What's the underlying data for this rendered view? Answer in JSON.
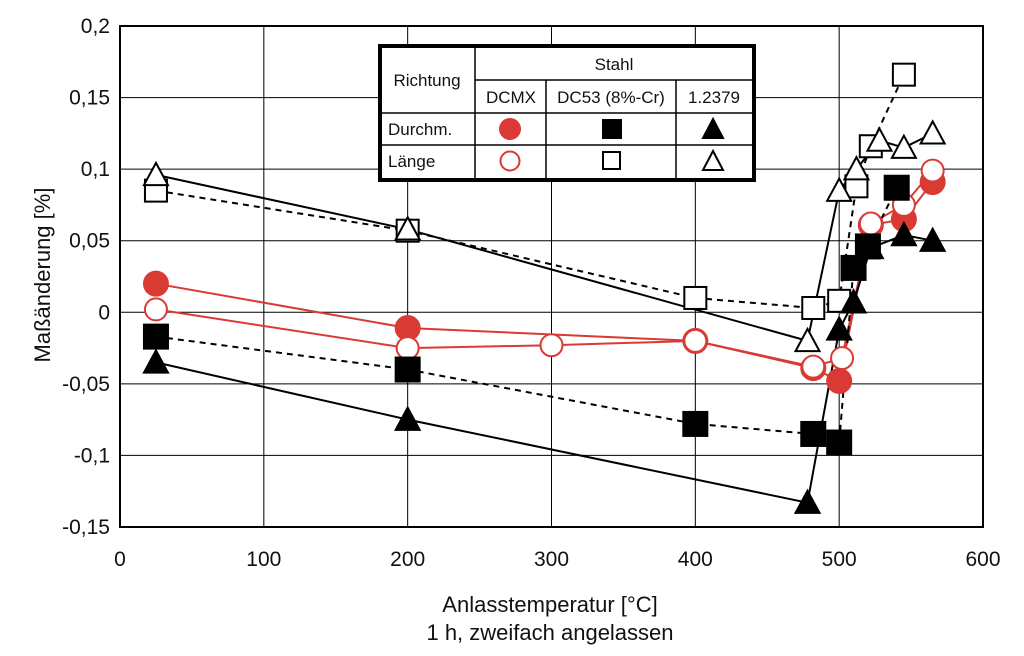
{
  "chart_data": {
    "type": "line",
    "xlabel": "Anlasstemperatur [°C]",
    "xlabel_line2": "1 h, zweifach angelassen",
    "ylabel": "Maßänderung [%]",
    "xlim": [
      0,
      600
    ],
    "ylim": [
      -0.15,
      0.2
    ],
    "x_ticks": [
      0,
      100,
      200,
      300,
      400,
      500,
      600
    ],
    "x_tick_labels": [
      "0",
      "100",
      "200",
      "300",
      "400",
      "500",
      "600"
    ],
    "y_ticks": [
      -0.15,
      -0.1,
      -0.05,
      0,
      0.05,
      0.1,
      0.15,
      0.2
    ],
    "y_tick_labels": [
      "-0,15",
      "-0,1",
      "-0,05",
      "0",
      "0,05",
      "0,1",
      "0,15",
      "0,2"
    ],
    "grid": true,
    "legend": {
      "placement": "top-center",
      "row_header": "Richtung",
      "group_header": "Stahl",
      "columns": [
        "DCMX",
        "DC53 (8%-Cr)",
        "1.2379"
      ],
      "rows": [
        "Durchm.",
        "Länge"
      ]
    },
    "series": [
      {
        "steel": "DCMX",
        "direction": "Durchm.",
        "marker": "circle",
        "filled": true,
        "color": "#d93a34",
        "line": "solid",
        "x": [
          25,
          200,
          400,
          482,
          500,
          522,
          545,
          565
        ],
        "y": [
          0.02,
          -0.011,
          -0.02,
          -0.039,
          -0.048,
          0.061,
          0.065,
          0.091
        ]
      },
      {
        "steel": "DCMX",
        "direction": "Länge",
        "marker": "circle",
        "filled": false,
        "color": "#d93a34",
        "line": "solid",
        "x": [
          25,
          200,
          300,
          400,
          482,
          502,
          522,
          545,
          565
        ],
        "y": [
          0.002,
          -0.025,
          -0.023,
          -0.02,
          -0.038,
          -0.032,
          0.062,
          0.075,
          0.099
        ]
      },
      {
        "steel": "DC53 (8%-Cr)",
        "direction": "Durchm.",
        "marker": "square",
        "filled": true,
        "color": "#000000",
        "line": "dashed",
        "x": [
          25,
          200,
          400,
          482,
          500,
          510,
          520,
          540
        ],
        "y": [
          -0.017,
          -0.04,
          -0.078,
          -0.085,
          -0.091,
          0.031,
          0.046,
          0.087
        ]
      },
      {
        "steel": "DC53 (8%-Cr)",
        "direction": "Länge",
        "marker": "square",
        "filled": false,
        "color": "#000000",
        "line": "dashed",
        "x": [
          25,
          200,
          400,
          482,
          500,
          512,
          522,
          545
        ],
        "y": [
          0.085,
          0.057,
          0.01,
          0.003,
          0.008,
          0.088,
          0.116,
          0.166
        ]
      },
      {
        "steel": "1.2379",
        "direction": "Durchm.",
        "marker": "triangle",
        "filled": true,
        "color": "#000000",
        "line": "solid",
        "x": [
          25,
          200,
          478,
          500,
          510,
          522,
          545,
          565
        ],
        "y": [
          -0.035,
          -0.075,
          -0.133,
          -0.012,
          0.007,
          0.045,
          0.054,
          0.05
        ]
      },
      {
        "steel": "1.2379",
        "direction": "Länge",
        "marker": "triangle",
        "filled": false,
        "color": "#000000",
        "line": "solid",
        "x": [
          25,
          200,
          478,
          500,
          512,
          528,
          545,
          565
        ],
        "y": [
          0.096,
          0.058,
          -0.02,
          0.085,
          0.1,
          0.12,
          0.115,
          0.125
        ]
      }
    ]
  }
}
